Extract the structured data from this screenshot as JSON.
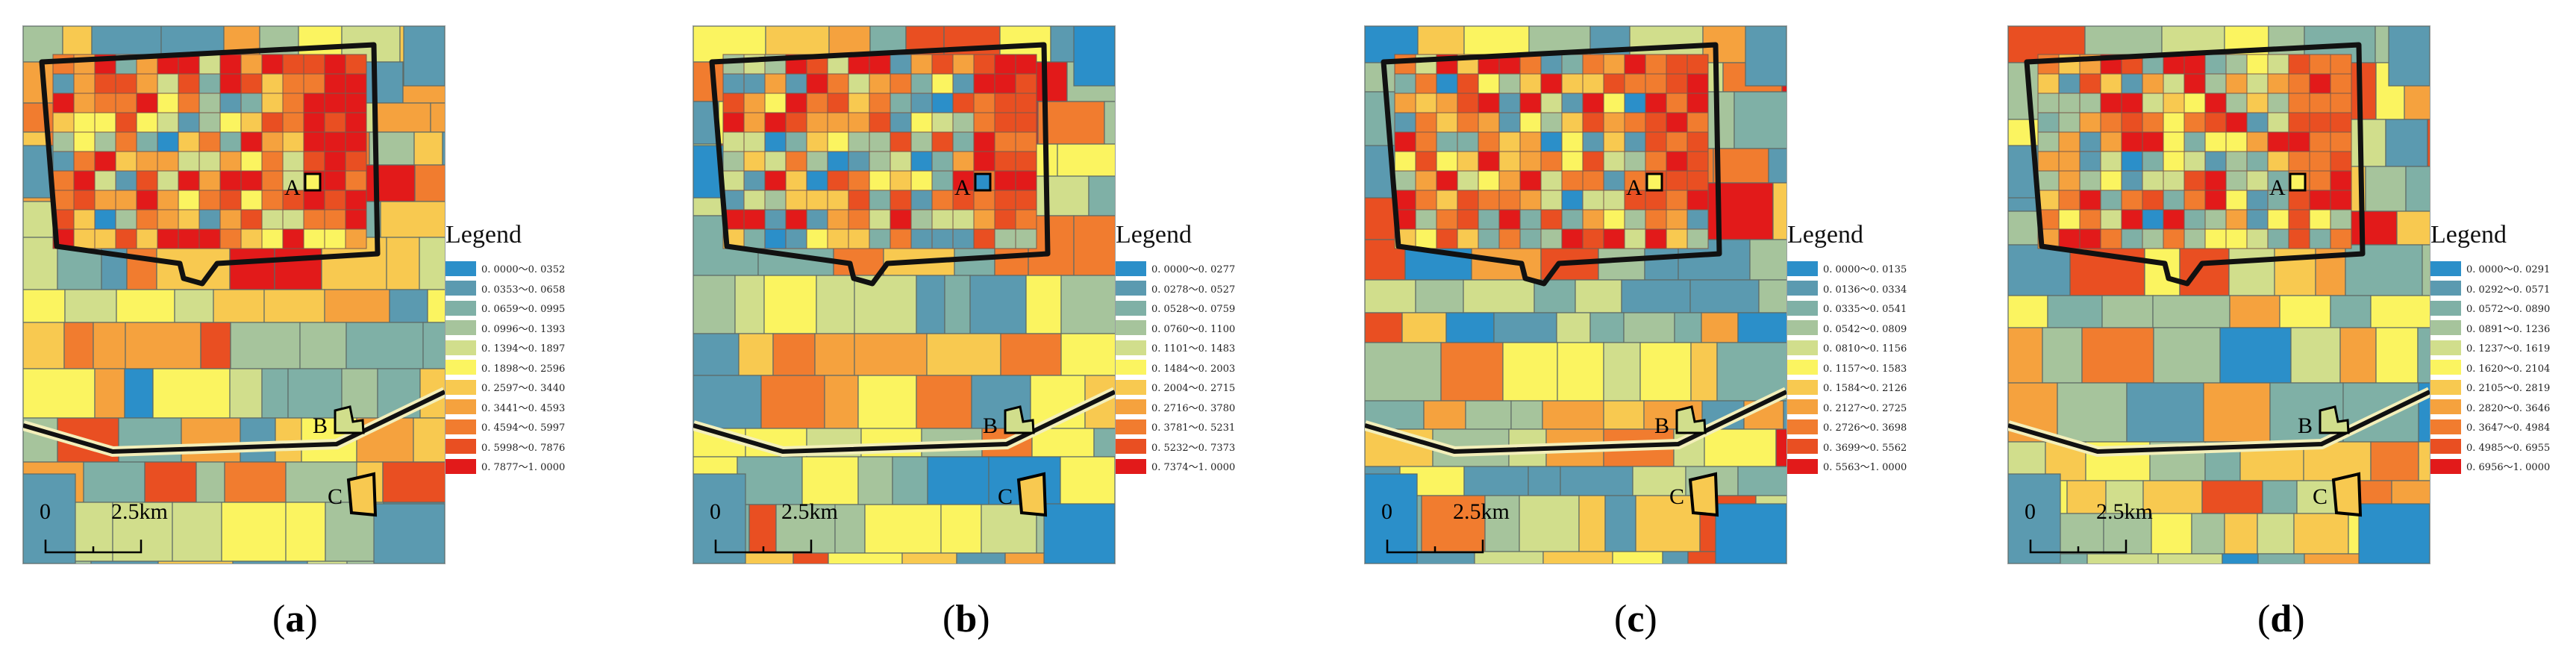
{
  "colors": {
    "classes": [
      "#2b8fc9",
      "#5b9ab0",
      "#7fb0a6",
      "#a6c49c",
      "#d1de8c",
      "#fbf460",
      "#f8c950",
      "#f5a23e",
      "#f17c2f",
      "#e94f22",
      "#e21a1a"
    ],
    "road_halo": "#f3efba",
    "boundary": "#111111"
  },
  "legend_title": "Legend",
  "map_labels": {
    "a": "A",
    "b": "B",
    "c": "C"
  },
  "scale": {
    "zero": "0",
    "distance": "2.5km"
  },
  "panels": [
    {
      "caption_open": "(",
      "caption_letter": "a",
      "caption_close": ")",
      "seed": 11,
      "weights": [
        1,
        6,
        7,
        9,
        9,
        8,
        6,
        8,
        6,
        3,
        1
      ],
      "zone_bias": 3,
      "legend": [
        "0. 0000～0. 0352",
        "0. 0353～0. 0658",
        "0. 0659～0. 0995",
        "0. 0996～0. 1393",
        "0. 1394～0. 1897",
        "0. 1898～0. 2596",
        "0. 2597～0. 3440",
        "0. 3441～0. 4593",
        "0. 4594～0. 5997",
        "0. 5998～0. 7876",
        "0. 7877～1. 0000"
      ]
    },
    {
      "caption_open": "(",
      "caption_letter": "b",
      "caption_close": ")",
      "seed": 29,
      "weights": [
        2,
        9,
        8,
        9,
        9,
        7,
        5,
        6,
        5,
        3,
        1
      ],
      "zone_bias": 2,
      "legend": [
        "0. 0000～0. 0277",
        "0. 0278～0. 0527",
        "0. 0528～0. 0759",
        "0. 0760～0. 1100",
        "0. 1101～0. 1483",
        "0. 1484～0. 2003",
        "0. 2004～0. 2715",
        "0. 2716～0. 3780",
        "0. 3781～0. 5231",
        "0. 5232～0. 7373",
        "0. 7374～1. 0000"
      ]
    },
    {
      "caption_open": "(",
      "caption_letter": "c",
      "caption_close": ")",
      "seed": 47,
      "weights": [
        3,
        8,
        8,
        9,
        8,
        7,
        5,
        7,
        6,
        3,
        2
      ],
      "zone_bias": 3,
      "legend": [
        "0. 0000～0. 0135",
        "0. 0136～0. 0334",
        "0. 0335～0. 0541",
        "0. 0542～0. 0809",
        "0. 0810～0. 1156",
        "0. 1157～0. 1583",
        "0. 1584～0. 2126",
        "0. 2127～0. 2725",
        "0. 2726～0. 3698",
        "0. 3699～0. 5562",
        "0. 5563～1. 0000"
      ]
    },
    {
      "caption_open": "(",
      "caption_letter": "d",
      "caption_close": ")",
      "seed": 63,
      "weights": [
        1,
        7,
        8,
        9,
        9,
        7,
        6,
        7,
        5,
        3,
        1
      ],
      "zone_bias": 3,
      "legend": [
        "0. 0000～0. 0291",
        "0. 0292～0. 0571",
        "0. 0572～0. 0890",
        "0. 0891～0. 1236",
        "0. 1237～0. 1619",
        "0. 1620～0. 2104",
        "0. 2105～0. 2819",
        "0. 2820～0. 3646",
        "0. 3647～0. 4984",
        "0. 4985～0. 6955",
        "0. 6956～1. 0000"
      ]
    }
  ]
}
